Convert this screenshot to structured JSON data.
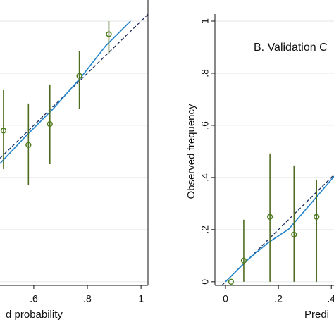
{
  "chart_data": [
    {
      "type": "scatter",
      "xlabel": "d probability",
      "x": [
        0.487,
        0.58,
        0.66,
        0.77,
        0.88
      ],
      "values": [
        0.58,
        0.525,
        0.605,
        0.79,
        0.95
      ],
      "lower": [
        0.432,
        0.37,
        0.451,
        0.662,
        0.875
      ],
      "upper": [
        0.735,
        0.684,
        0.757,
        0.886,
        1.0
      ],
      "smooth": {
        "x": [
          0.474,
          0.579,
          0.671,
          0.776,
          0.868,
          0.961
        ],
        "values": [
          0.454,
          0.568,
          0.662,
          0.784,
          0.905,
          1.0
        ]
      },
      "xlim": [
        0.474,
        1.026
      ],
      "ylim": [
        -0.014,
        1.027
      ],
      "xticks": [
        {
          "value": 0.6,
          "label": ".6"
        },
        {
          "value": 0.8,
          "label": ".8"
        },
        1
      ],
      "yticks": [
        0,
        0.2,
        0.4,
        0.6,
        0.8,
        1
      ],
      "show_ytick_labels": false,
      "grid": true,
      "point_color": "#4c7d1c",
      "bar_color": "#4f6b1f",
      "smooth_color": "#1f82cc",
      "reference_color": "#1b2b5e"
    },
    {
      "type": "scatter",
      "title": "B. Validation C",
      "xlabel": "Predi",
      "ylabel": "Observed frequency",
      "x": [
        0.021,
        0.069,
        0.168,
        0.259,
        0.344
      ],
      "values": [
        0,
        0.081,
        0.249,
        0.181,
        0.249
      ],
      "lower": [
        null,
        0,
        0,
        0,
        0
      ],
      "upper": [
        null,
        0.238,
        0.492,
        0.446,
        0.392
      ],
      "smooth": {
        "x": [
          0,
          0.08,
          0.16,
          0.24,
          0.32,
          0.411
        ],
        "values": [
          0,
          0.081,
          0.149,
          0.203,
          0.297,
          0.405
        ]
      },
      "xlim": [
        -0.04,
        0.41
      ],
      "ylim": [
        -0.014,
        1.027
      ],
      "xticks": [
        0,
        {
          "value": 0.2,
          "label": ".2"
        },
        {
          "value": 0.4,
          "label": ".4"
        }
      ],
      "yticks": [
        0,
        {
          "value": 0.2,
          "label": ".2"
        },
        {
          "value": 0.4,
          "label": ".4"
        },
        {
          "value": 0.6,
          "label": ".6"
        },
        {
          "value": 0.8,
          "label": ".8"
        },
        1
      ],
      "show_ytick_labels": true,
      "grid": true,
      "point_color": "#4c7d1c",
      "bar_color": "#4f6b1f",
      "smooth_color": "#1f82cc",
      "reference_color": "#1b2b5e"
    }
  ]
}
